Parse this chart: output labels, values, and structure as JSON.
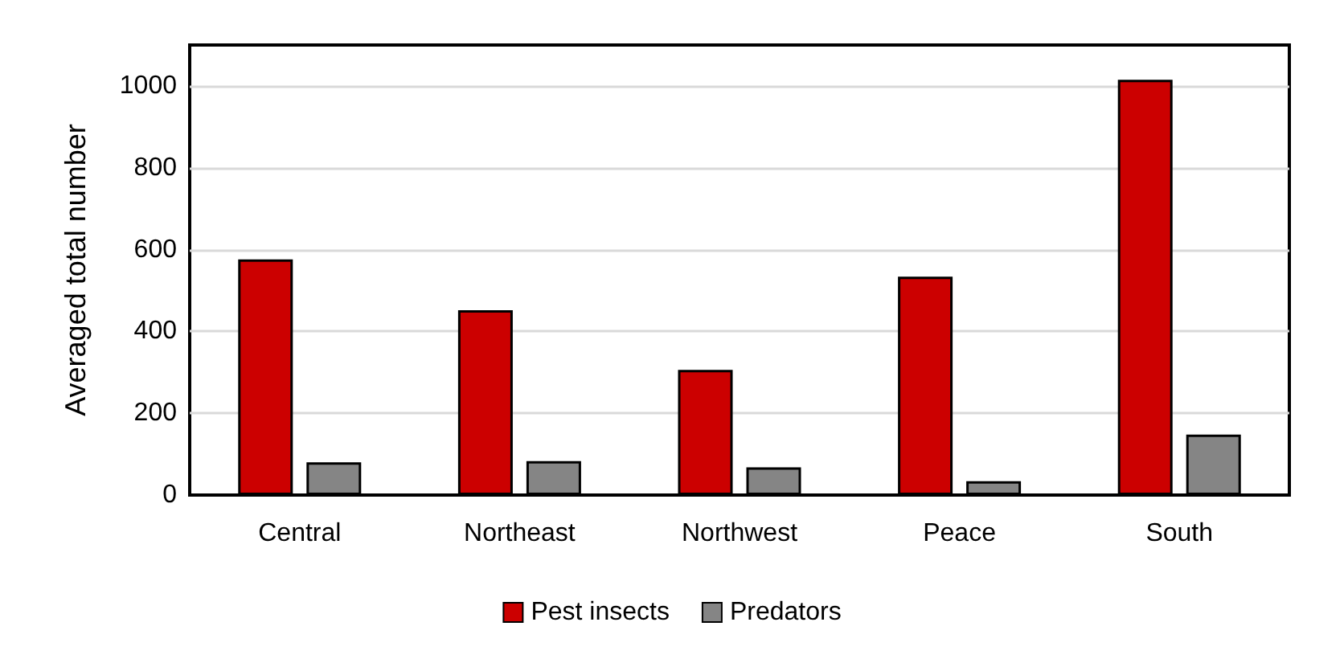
{
  "chart_data": {
    "type": "bar",
    "ylabel": "Averaged total number",
    "categories": [
      "Central",
      "Northeast",
      "Northwest",
      "Peace",
      "South"
    ],
    "series": [
      {
        "name": "Pest insects",
        "color": "#cc0000",
        "values": [
          576,
          452,
          306,
          534,
          1015
        ]
      },
      {
        "name": "Predators",
        "color": "#858585",
        "values": [
          80,
          83,
          68,
          34,
          148
        ]
      }
    ],
    "ylim": [
      0,
      1100
    ],
    "yticks": [
      0,
      200,
      400,
      600,
      800,
      1000
    ],
    "grid": "y",
    "legend": "bottom"
  }
}
